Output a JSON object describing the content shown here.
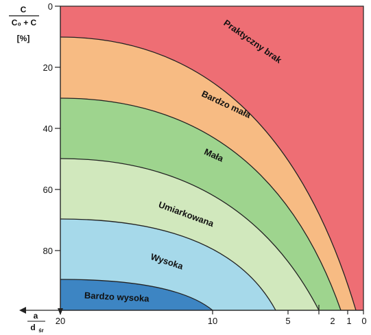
{
  "y_axis": {
    "title_line1": "C",
    "title_line2": "C₀ + C",
    "unit": "[%]",
    "ticks": [
      "0",
      "20",
      "40",
      "60",
      "80"
    ]
  },
  "x_axis": {
    "title": "a",
    "title_sub": "d",
    "title_sub_index": "śr",
    "ticks": [
      "20",
      "10",
      "5",
      "2",
      "1",
      "0"
    ]
  },
  "zones": [
    {
      "label": "Praktyczny brak",
      "color": "#ee6e74",
      "upper_percent": 0
    },
    {
      "label": "Bardzo mała",
      "color": "#f7bb83",
      "upper_percent": 10
    },
    {
      "label": "Mała",
      "color": "#9ed48e",
      "upper_percent": 30
    },
    {
      "label": "Umiarkowana",
      "color": "#d1e8bd",
      "upper_percent": 50
    },
    {
      "label": "Wysoka",
      "color": "#a6d9ea",
      "upper_percent": 70
    },
    {
      "label": "Bardzo wysoka",
      "color": "#3d85c3",
      "upper_percent": 90
    }
  ],
  "colors": {
    "border": "#222222"
  }
}
